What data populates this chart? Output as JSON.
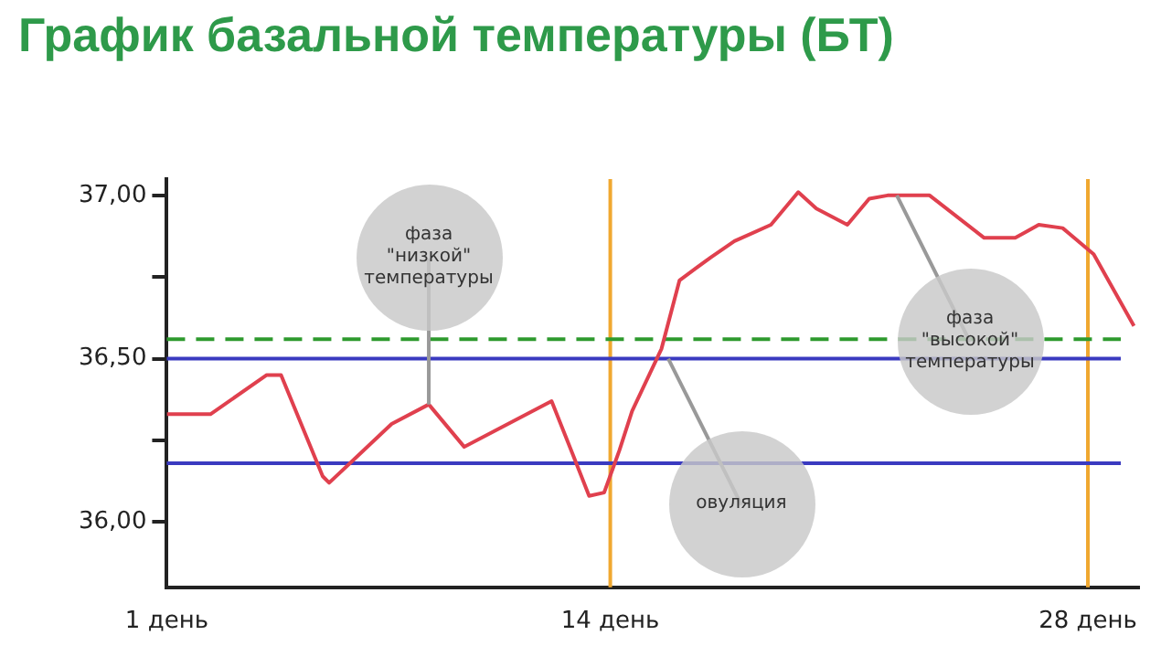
{
  "chart_data": {
    "type": "line",
    "title": "График базальной температуры (БТ)",
    "x": [
      1,
      2.28,
      3.93,
      4.35,
      5.57,
      5.76,
      7.59,
      8.68,
      9.72,
      10.63,
      12.28,
      12.89,
      13.38,
      13.82,
      14.27,
      14.64,
      15.5,
      16.03,
      16.94,
      17.64,
      18.71,
      19.51,
      20.04,
      20.95,
      21.59,
      22.13,
      23.36,
      24.96,
      25.87,
      26.56,
      27.26,
      28.17,
      29.35
    ],
    "series": [
      {
        "color": "#e0404e",
        "values": [
          36.33,
          36.33,
          36.45,
          36.45,
          36.14,
          36.12,
          36.3,
          36.36,
          36.23,
          36.28,
          36.37,
          36.21,
          36.08,
          36.09,
          36.22,
          36.34,
          36.53,
          36.74,
          36.81,
          36.86,
          36.91,
          37.01,
          36.96,
          36.91,
          36.99,
          37.0,
          37.0,
          36.87,
          36.87,
          36.91,
          36.9,
          36.82,
          36.6
        ]
      }
    ],
    "xlim": [
      1,
      29.5
    ],
    "xticks": [
      {
        "value": 1,
        "label": "1 день"
      },
      {
        "value": 14,
        "label": "14 день"
      },
      {
        "value": 28,
        "label": "28 день"
      }
    ],
    "ylim": [
      35.8,
      37.05
    ],
    "yticks": [
      {
        "value": 36,
        "label": "36,00"
      },
      {
        "value": 36.25,
        "label": null
      },
      {
        "value": 36.5,
        "label": "36,50"
      },
      {
        "value": 36.75,
        "label": null
      },
      {
        "value": 37,
        "label": "37,00"
      }
    ],
    "grid": false,
    "marker": "none",
    "line_style": "solid",
    "ref_lines": [
      {
        "axis": "x",
        "value": 14,
        "color": "#f0a830"
      },
      {
        "axis": "x",
        "value": 28,
        "color": "#f0a830"
      },
      {
        "axis": "y",
        "value": 36.5,
        "color": "#3a3ac0"
      },
      {
        "axis": "y",
        "value": 36.18,
        "color": "#3a3ac0"
      },
      {
        "axis": "y",
        "value": 36.56,
        "color": "#2e9a2e",
        "line_style": "dashed"
      }
    ],
    "annotations": [
      {
        "text": "фаза \"низкой\" температуры",
        "x": 8.68,
        "y": 36.36
      },
      {
        "text": "овуляция",
        "x": 15.7,
        "y": 36.5
      },
      {
        "text": "фаза \"высокой\" температуры",
        "x": 22.4,
        "y": 37.0
      }
    ]
  }
}
